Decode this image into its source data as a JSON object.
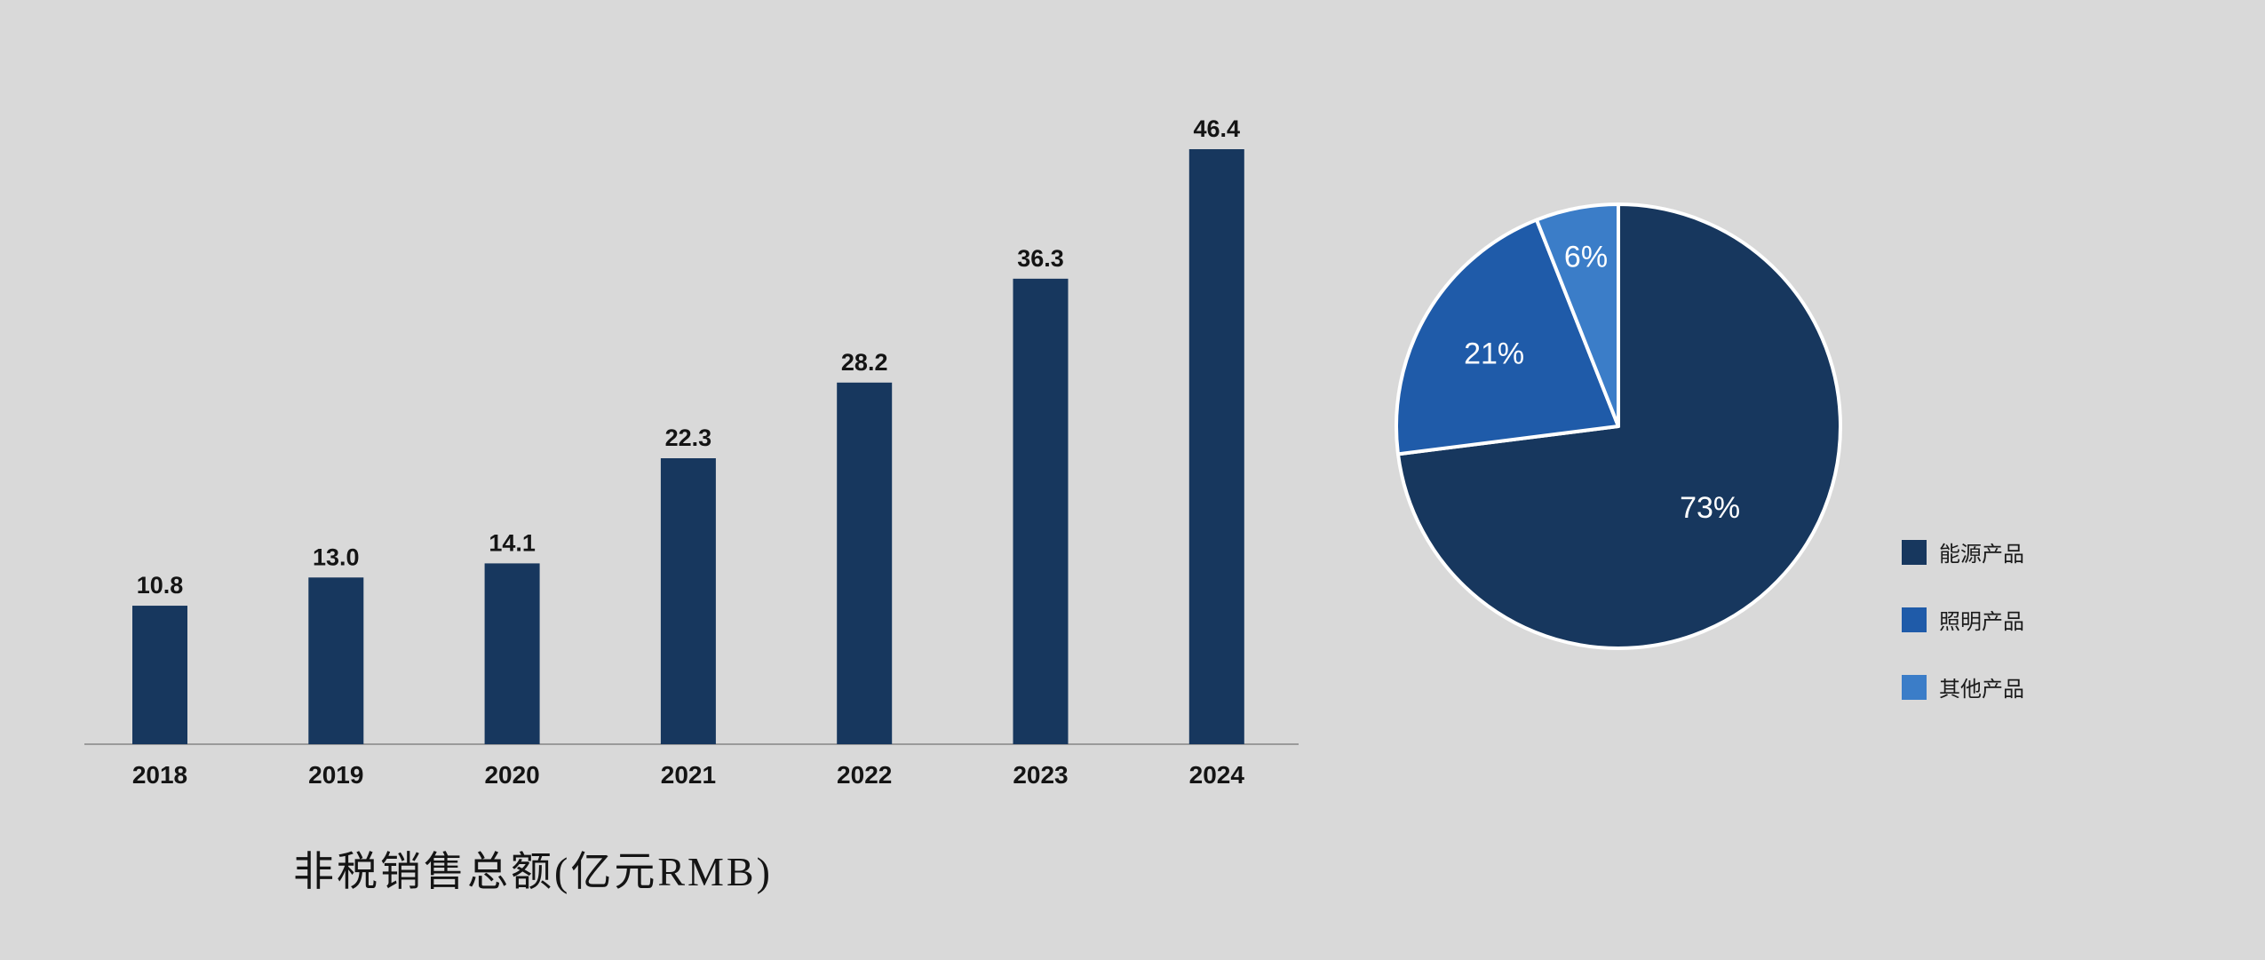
{
  "colors": {
    "background": "#d9d9d9",
    "axis_line": "#9a9a9a",
    "text_dark": "#141414",
    "pie_slice_border": "#ffffff"
  },
  "chart_data": [
    {
      "type": "bar",
      "title": "非税销售总额(亿元RMB)",
      "categories": [
        "2018",
        "2019",
        "2020",
        "2021",
        "2022",
        "2023",
        "2024"
      ],
      "values": [
        10.8,
        13.0,
        14.1,
        22.3,
        28.2,
        36.3,
        46.4
      ],
      "value_labels": [
        "10.8",
        "13.0",
        "14.1",
        "22.3",
        "28.2",
        "36.3",
        "46.4"
      ],
      "bar_color": "#17375E",
      "xlabel": "",
      "ylabel": "",
      "ylim": [
        0,
        50
      ],
      "grid": false,
      "data_labels": true,
      "axis_visible": true
    },
    {
      "type": "pie",
      "title": "",
      "direction": "clockwise",
      "start_angle_deg": 0,
      "legend_position": "right",
      "slices": [
        {
          "label": "能源产品",
          "value": 73,
          "text": "73%",
          "color": "#17375E"
        },
        {
          "label": "照明产品",
          "value": 21,
          "text": "21%",
          "color": "#1F5BA9"
        },
        {
          "label": "其他产品",
          "value": 6,
          "text": "6%",
          "color": "#3B7DC8"
        }
      ]
    }
  ]
}
